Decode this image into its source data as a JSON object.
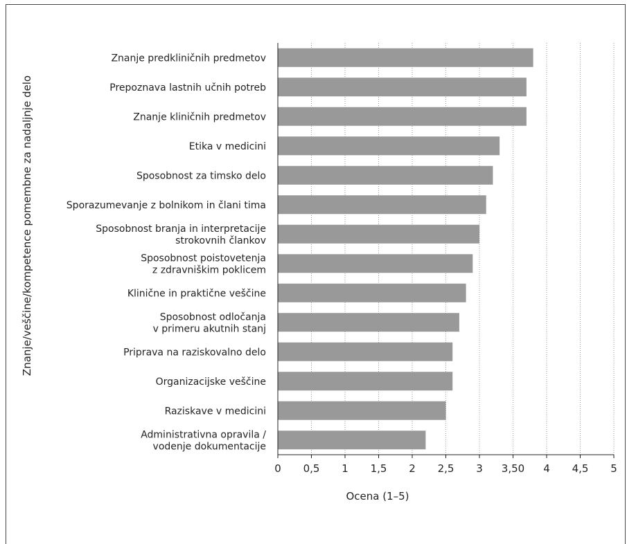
{
  "chart_data": {
    "type": "bar",
    "orientation": "horizontal",
    "categories": [
      "Znanje predkliničnih predmetov",
      "Prepoznava lastnih učnih potreb",
      "Znanje kliničnih predmetov",
      "Etika v medicini",
      "Sposobnost za timsko delo",
      "Sporazumevanje z bolnikom in člani tima",
      "Sposobnost branja in interpretacije strokovnih člankov",
      "Sposobnost poistovetenja z zdravniškim poklicem",
      "Klinične in praktične veščine",
      "Sposobnost odločanja v primeru akutnih stanj",
      "Priprava na raziskovalno delo",
      "Organizacijske veščine",
      "Raziskave v medicini",
      "Administrativna opravila / vodenje dokumentacije"
    ],
    "category_lines": [
      [
        "Znanje predkliničnih predmetov"
      ],
      [
        "Prepoznava lastnih učnih potreb"
      ],
      [
        "Znanje kliničnih predmetov"
      ],
      [
        "Etika v medicini"
      ],
      [
        "Sposobnost za timsko delo"
      ],
      [
        "Sporazumevanje z bolnikom in člani tima"
      ],
      [
        "Sposobnost branja in interpretacije",
        "strokovnih člankov"
      ],
      [
        "Sposobnost poistovetenja",
        "z zdravniškim poklicem"
      ],
      [
        "Klinične in praktične veščine"
      ],
      [
        "Sposobnost odločanja",
        "v primeru akutnih stanj"
      ],
      [
        "Priprava na raziskovalno delo"
      ],
      [
        "Organizacijske veščine"
      ],
      [
        "Raziskave v medicini"
      ],
      [
        "Administrativna opravila /",
        "vodenje dokumentacije"
      ]
    ],
    "values": [
      3.8,
      3.7,
      3.7,
      3.3,
      3.2,
      3.1,
      3.0,
      2.9,
      2.8,
      2.7,
      2.6,
      2.6,
      2.5,
      2.2
    ],
    "xlabel": "Ocena (1–5)",
    "ylabel": "Znanje/veščine/kompetence pomembne za nadaljnje delo",
    "xlim": [
      0,
      5
    ],
    "xticks": [
      0,
      0.5,
      1,
      1.5,
      2,
      2.5,
      3,
      3.5,
      4,
      4.5,
      5
    ],
    "xtick_labels": [
      "0",
      "0,5",
      "1",
      "1,5",
      "2",
      "2,5",
      "3",
      "3,50",
      "4",
      "4,5",
      "5"
    ],
    "grid": "vertical dotted",
    "bar_color": "#999999"
  }
}
